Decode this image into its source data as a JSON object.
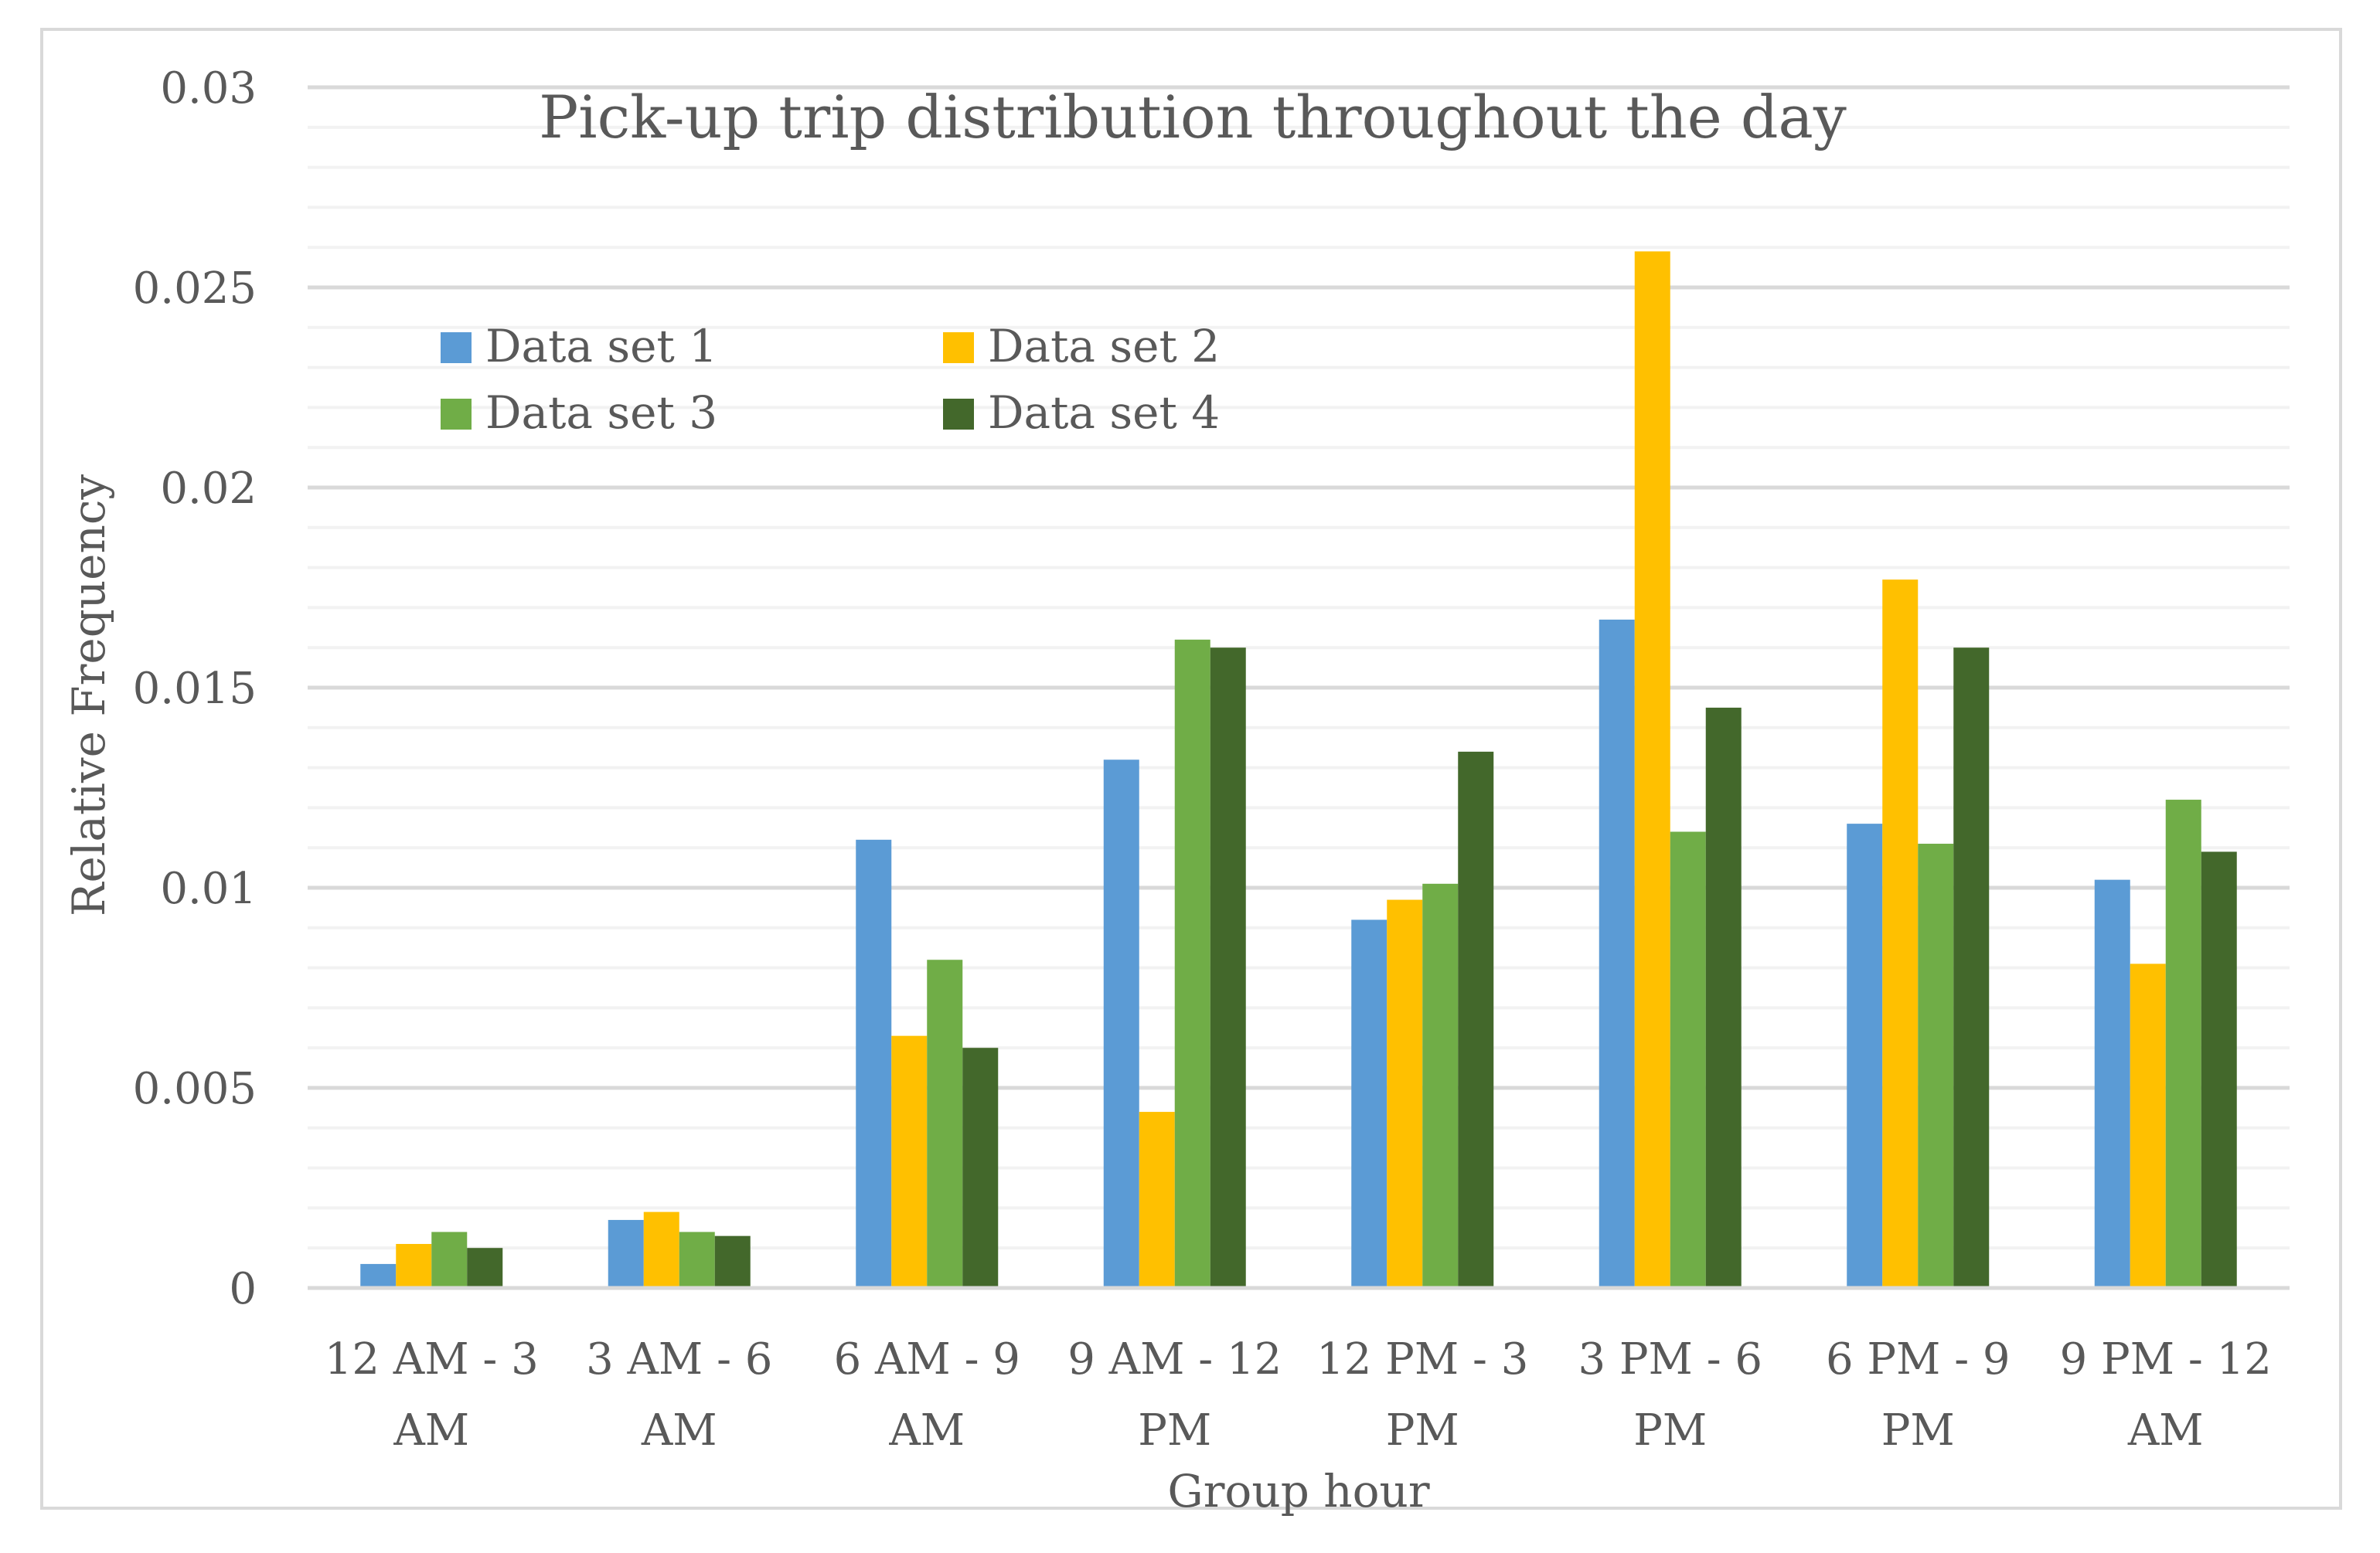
{
  "chart_data": {
    "type": "bar",
    "title": "Pick-up trip distribution throughout the day",
    "xlabel": "Group hour",
    "ylabel": "Relative Frequency",
    "ylim": [
      0,
      0.03
    ],
    "yticks": [
      "0",
      "0.005",
      "0.01",
      "0.015",
      "0.02",
      "0.025",
      "0.03"
    ],
    "ytick_values": [
      0,
      0.005,
      0.01,
      0.015,
      0.02,
      0.025,
      0.03
    ],
    "categories": [
      [
        "12 AM - 3",
        "AM"
      ],
      [
        "3 AM - 6",
        "AM"
      ],
      [
        "6 AM - 9",
        "AM"
      ],
      [
        "9 AM - 12",
        "PM"
      ],
      [
        "12 PM - 3",
        "PM"
      ],
      [
        "3 PM - 6",
        "PM"
      ],
      [
        "6 PM - 9",
        "PM"
      ],
      [
        "9 PM - 12",
        "AM"
      ]
    ],
    "series": [
      {
        "name": "Data set 1",
        "color": "#5b9bd5",
        "values": [
          0.0006,
          0.0017,
          0.0112,
          0.0132,
          0.0092,
          0.0167,
          0.0116,
          0.0102
        ]
      },
      {
        "name": "Data set 2",
        "color": "#ffc000",
        "values": [
          0.0011,
          0.0019,
          0.0063,
          0.0044,
          0.0097,
          0.0259,
          0.0177,
          0.0081
        ]
      },
      {
        "name": "Data set 3",
        "color": "#70ad47",
        "values": [
          0.0014,
          0.0014,
          0.0082,
          0.0162,
          0.0101,
          0.0114,
          0.0111,
          0.0122
        ]
      },
      {
        "name": "Data set 4",
        "color": "#43682b",
        "values": [
          0.001,
          0.0013,
          0.006,
          0.016,
          0.0134,
          0.0145,
          0.016,
          0.0109
        ]
      }
    ],
    "legend_position": "top-left",
    "grid": true,
    "gridline_color": "#d9d9d9",
    "minor_gridline_color": "#f2f2f2"
  }
}
